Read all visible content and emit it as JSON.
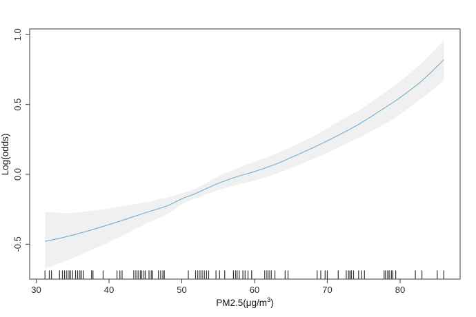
{
  "chart_data": {
    "type": "line",
    "title": "",
    "subtitle": "",
    "xlabel_prefix": "PM2.5(μg/m",
    "xlabel_sup": "3",
    "xlabel_suffix": ")",
    "ylabel": "Log(odds)",
    "legend": null,
    "grid": false,
    "xlim": [
      29.1,
      88.25
    ],
    "ylim": [
      -0.75,
      1.041
    ],
    "x_ticks": {
      "values": [
        30,
        40,
        50,
        60,
        70,
        80
      ],
      "labels": [
        "30",
        "40",
        "50",
        "60",
        "70",
        "80"
      ]
    },
    "y_ticks": {
      "values": [
        -0.5,
        0.0,
        0.5,
        1.0
      ],
      "labels": [
        "-0.5",
        "0.0",
        "0.5",
        "1.0"
      ]
    },
    "series": [
      {
        "name": "smooth-fit-with-confidence-band",
        "x": [
          31.2,
          35,
          40,
          45,
          48,
          50,
          52,
          55,
          58,
          60,
          63,
          65,
          68,
          70,
          73,
          75,
          78,
          80,
          83,
          86
        ],
        "fit": [
          -0.48,
          -0.435,
          -0.36,
          -0.275,
          -0.225,
          -0.175,
          -0.135,
          -0.065,
          -0.01,
          0.02,
          0.075,
          0.12,
          0.19,
          0.24,
          0.32,
          0.38,
          0.48,
          0.55,
          0.67,
          0.82
        ],
        "lower": [
          -0.675,
          -0.6,
          -0.485,
          -0.355,
          -0.285,
          -0.215,
          -0.17,
          -0.115,
          -0.07,
          -0.045,
          0.005,
          0.045,
          0.11,
          0.155,
          0.23,
          0.28,
          0.365,
          0.43,
          0.545,
          0.67
        ],
        "upper": [
          -0.27,
          -0.275,
          -0.245,
          -0.2,
          -0.165,
          -0.135,
          -0.1,
          -0.015,
          0.05,
          0.09,
          0.15,
          0.195,
          0.27,
          0.33,
          0.42,
          0.48,
          0.59,
          0.665,
          0.8,
          0.96
        ]
      }
    ],
    "rug_x": [
      31.2,
      31.8,
      32.1,
      33.2,
      33.6,
      33.9,
      34.2,
      34.5,
      34.7,
      35.0,
      35.4,
      35.7,
      36.0,
      36.2,
      36.5,
      37.6,
      37.8,
      39.2,
      41.1,
      41.5,
      41.8,
      43.4,
      43.7,
      44.0,
      44.3,
      44.5,
      44.8,
      45.0,
      45.5,
      45.8,
      46.0,
      46.8,
      47.1,
      47.4,
      47.6,
      50.9,
      51.9,
      52.2,
      52.5,
      52.8,
      53.1,
      53.4,
      53.7,
      54.7,
      55.2,
      55.9,
      57.1,
      57.4,
      57.6,
      57.9,
      58.4,
      58.7,
      59.1,
      59.6,
      61.4,
      61.7,
      62.0,
      62.3,
      62.8,
      64.2,
      64.6,
      68.6,
      69.1,
      69.7,
      70.0,
      71.5,
      72.6,
      72.9,
      73.1,
      73.3,
      73.6,
      74.3,
      74.7,
      75.1,
      77.8,
      78.0,
      78.3,
      78.5,
      78.8,
      79.0,
      79.4,
      82.1,
      83.0,
      85.1,
      86.0
    ],
    "colors": {
      "line": "#74accf",
      "band": "#f0f0f0",
      "rug": "#1c1c1c",
      "axis": "#4d4d4d",
      "tick_text": "#2b2b2b",
      "background": "#ffffff"
    }
  }
}
